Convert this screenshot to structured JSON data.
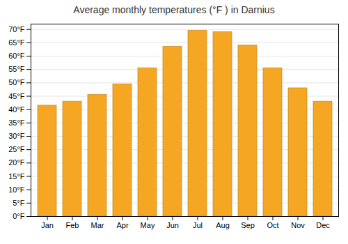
{
  "chart_data": {
    "type": "bar",
    "title": "Average monthly temperatures (°F ) in Darnius",
    "categories": [
      "Jan",
      "Feb",
      "Mar",
      "Apr",
      "May",
      "Jun",
      "Jul",
      "Aug",
      "Sep",
      "Oct",
      "Nov",
      "Dec"
    ],
    "values": [
      41.5,
      43,
      45.5,
      49.5,
      55.5,
      63.5,
      69.5,
      69,
      64,
      55.5,
      48,
      43
    ],
    "color": "#F5A623",
    "ylim": [
      0,
      72
    ],
    "yticks": [
      {
        "value": 0,
        "label": "0°F"
      },
      {
        "value": 5,
        "label": "5°F"
      },
      {
        "value": 10,
        "label": "10°F"
      },
      {
        "value": 15,
        "label": "15°F"
      },
      {
        "value": 20,
        "label": "20°F"
      },
      {
        "value": 25,
        "label": "25°F"
      },
      {
        "value": 30,
        "label": "30°F"
      },
      {
        "value": 35,
        "label": "35°F"
      },
      {
        "value": 40,
        "label": "40°F"
      },
      {
        "value": 45,
        "label": "45°F"
      },
      {
        "value": 50,
        "label": "50°F"
      },
      {
        "value": 55,
        "label": "55°F"
      },
      {
        "value": 60,
        "label": "60°F"
      },
      {
        "value": 65,
        "label": "65°F"
      },
      {
        "value": 70,
        "label": "70°F"
      }
    ],
    "grid": true
  }
}
